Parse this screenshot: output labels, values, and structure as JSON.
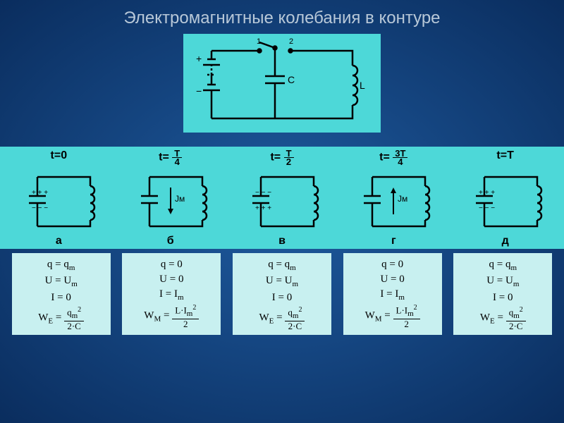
{
  "title": "Электромагнитные колебания в контуре",
  "colors": {
    "background_center": "#1e5a9e",
    "background_edge": "#0a2d5e",
    "panel": "#4dd8d8",
    "card": "#c8f0f0",
    "title_text": "#b8c8d8",
    "stroke": "#000000"
  },
  "main_circuit": {
    "switch_1": "1",
    "switch_2": "2",
    "cap_label": "C",
    "ind_label": "L"
  },
  "phases": [
    {
      "time_prefix": "t=0",
      "frac_num": "",
      "frac_den": "",
      "letter": "а",
      "cap_top": "+ + +",
      "cap_bot": "− − −",
      "has_current": false,
      "current_dir": ""
    },
    {
      "time_prefix": "t=",
      "frac_num": "T",
      "frac_den": "4",
      "letter": "б",
      "cap_top": "",
      "cap_bot": "",
      "has_current": true,
      "current_dir": "down",
      "current_label": "Jм"
    },
    {
      "time_prefix": "t=",
      "frac_num": "T",
      "frac_den": "2",
      "letter": "в",
      "cap_top": "− − −",
      "cap_bot": "+ + +",
      "has_current": false,
      "current_dir": ""
    },
    {
      "time_prefix": "t=",
      "frac_num": "3T",
      "frac_den": "4",
      "letter": "г",
      "cap_top": "",
      "cap_bot": "",
      "has_current": true,
      "current_dir": "up",
      "current_label": "Jм"
    },
    {
      "time_prefix": "t=T",
      "frac_num": "",
      "frac_den": "",
      "letter": "д",
      "cap_top": "+ + +",
      "cap_bot": "− − −",
      "has_current": false,
      "current_dir": ""
    }
  ],
  "formulas": [
    {
      "l1": "q = q",
      "l1s": "m",
      "l2": "U = U",
      "l2s": "m",
      "l3": "I = 0",
      "energy": "E",
      "num": "q",
      "num_sub": "m",
      "num_sup": "2",
      "den": "2·C"
    },
    {
      "l1": "q = 0",
      "l1s": "",
      "l2": "U = 0",
      "l2s": "",
      "l3": "I = I",
      "l3s": "m",
      "energy": "M",
      "num": "L·I",
      "num_sub": "m",
      "num_sup": "2",
      "den": "2"
    },
    {
      "l1": "q = q",
      "l1s": "m",
      "l2": "U = U",
      "l2s": "m",
      "l3": "I = 0",
      "energy": "E",
      "num": "q",
      "num_sub": "m",
      "num_sup": "2",
      "den": "2·C"
    },
    {
      "l1": "q = 0",
      "l1s": "",
      "l2": "U = 0",
      "l2s": "",
      "l3": "I = I",
      "l3s": "m",
      "energy": "M",
      "num": "L·I",
      "num_sub": "m",
      "num_sup": "2",
      "den": "2"
    },
    {
      "l1": "q = q",
      "l1s": "m",
      "l2": "U = U",
      "l2s": "m",
      "l3": "I = 0",
      "energy": "E",
      "num": "q",
      "num_sub": "m",
      "num_sup": "2",
      "den": "2·C"
    }
  ]
}
